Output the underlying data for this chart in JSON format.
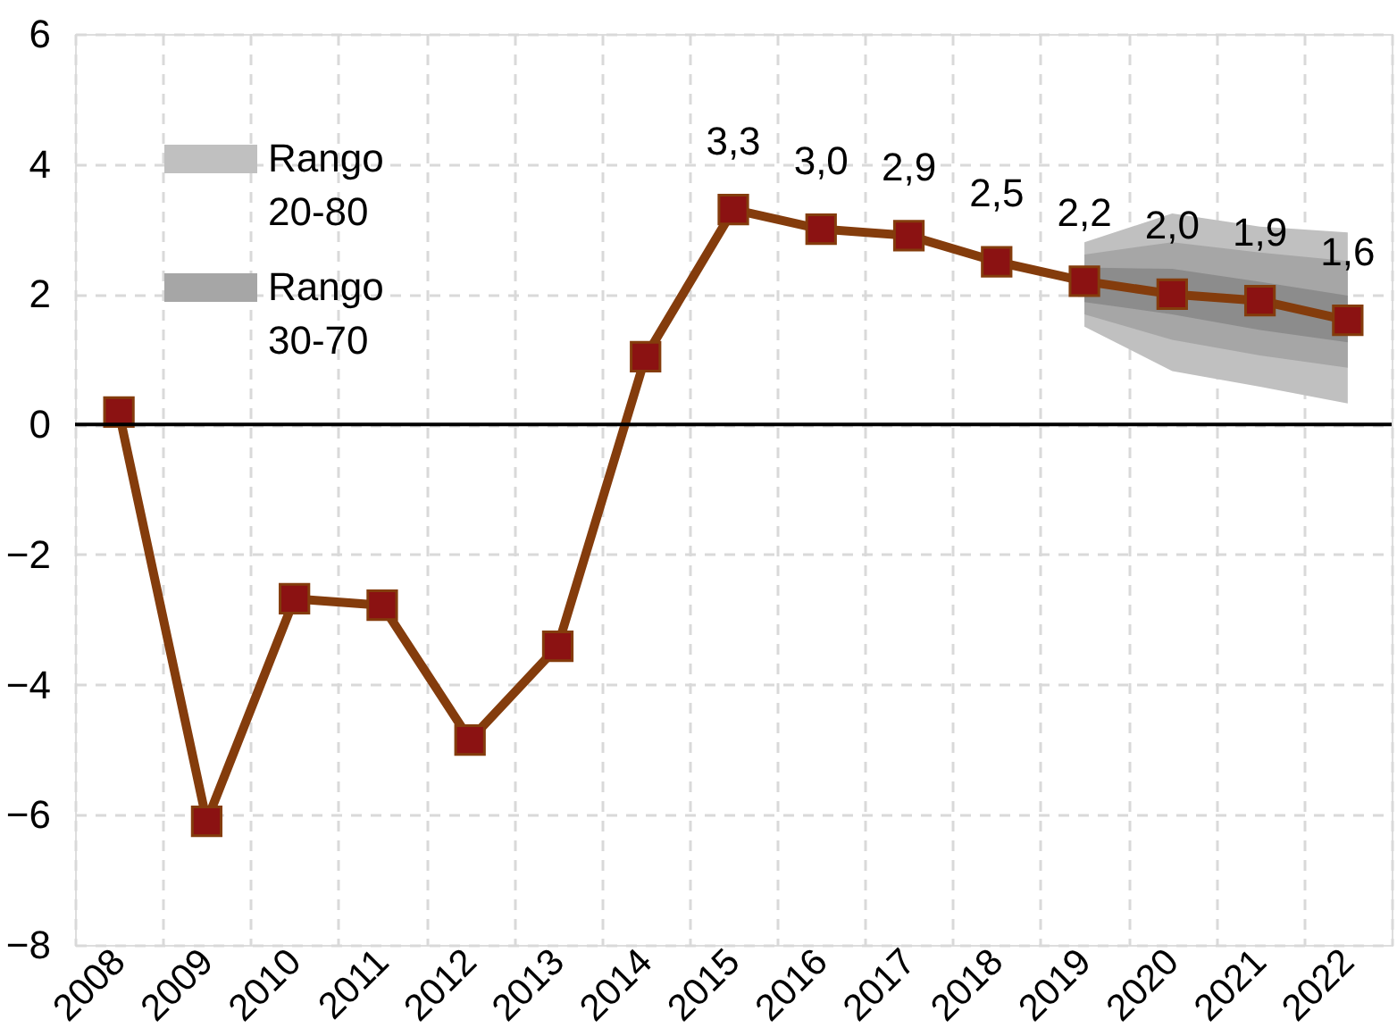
{
  "chart_data": {
    "type": "line",
    "categories": [
      "2008",
      "2009",
      "2010",
      "2011",
      "2012",
      "2013",
      "2014",
      "2015",
      "2016",
      "2017",
      "2018",
      "2019",
      "2020",
      "2021",
      "2022"
    ],
    "series": [
      {
        "name": "Rango 20-80",
        "type": "area",
        "color": "#c0c0c0",
        "values": [
          null,
          null,
          null,
          null,
          null,
          null,
          null,
          null,
          null,
          null,
          null,
          null,
          null,
          null,
          null
        ],
        "lower": [
          null,
          null,
          null,
          null,
          null,
          null,
          null,
          null,
          null,
          null,
          null,
          1.5,
          0.82,
          0.58,
          0.32
        ],
        "upper": [
          null,
          null,
          null,
          null,
          null,
          null,
          null,
          null,
          null,
          null,
          null,
          2.8,
          3.24,
          3.04,
          2.95
        ]
      },
      {
        "name": "Rango 30-70",
        "type": "area",
        "color": "#a6a6a6",
        "values": [
          null,
          null,
          null,
          null,
          null,
          null,
          null,
          null,
          null,
          null,
          null,
          null,
          null,
          null,
          null
        ],
        "lower": [
          null,
          null,
          null,
          null,
          null,
          null,
          null,
          null,
          null,
          null,
          null,
          1.69,
          1.3,
          1.06,
          0.87
        ],
        "upper": [
          null,
          null,
          null,
          null,
          null,
          null,
          null,
          null,
          null,
          null,
          null,
          2.61,
          2.8,
          2.64,
          2.51
        ]
      },
      {
        "type": "area",
        "color": "#8c8c8c",
        "values": [
          null,
          null,
          null,
          null,
          null,
          null,
          null,
          null,
          null,
          null,
          null,
          null,
          null,
          null,
          null
        ],
        "lower": [
          null,
          null,
          null,
          null,
          null,
          null,
          null,
          null,
          null,
          null,
          null,
          1.88,
          1.69,
          1.45,
          1.26
        ],
        "upper": [
          null,
          null,
          null,
          null,
          null,
          null,
          null,
          null,
          null,
          null,
          null,
          2.41,
          2.39,
          2.19,
          1.98
        ]
      },
      {
        "type": "line",
        "color": "#843c0c",
        "marker": "square",
        "values": [
          0.19,
          -6.1,
          -2.68,
          -2.78,
          -4.85,
          -3.41,
          1.04,
          3.3,
          3.0,
          2.9,
          2.5,
          2.2,
          2.0,
          1.9,
          1.6
        ],
        "value_labels": [
          null,
          null,
          null,
          null,
          null,
          null,
          null,
          "3,3",
          "3,0",
          "2,9",
          "2,5",
          "2,2",
          "2,0",
          "1,9",
          "1,6"
        ]
      }
    ],
    "ylim": [
      -8,
      6
    ],
    "yticks": [
      -8,
      -6,
      -4,
      -2,
      0,
      2,
      4,
      6
    ],
    "ref_lines": [
      {
        "axis": "y",
        "value": 0,
        "color": "#000000"
      }
    ],
    "grid": true,
    "line_style": "solid",
    "legend": "top left"
  }
}
